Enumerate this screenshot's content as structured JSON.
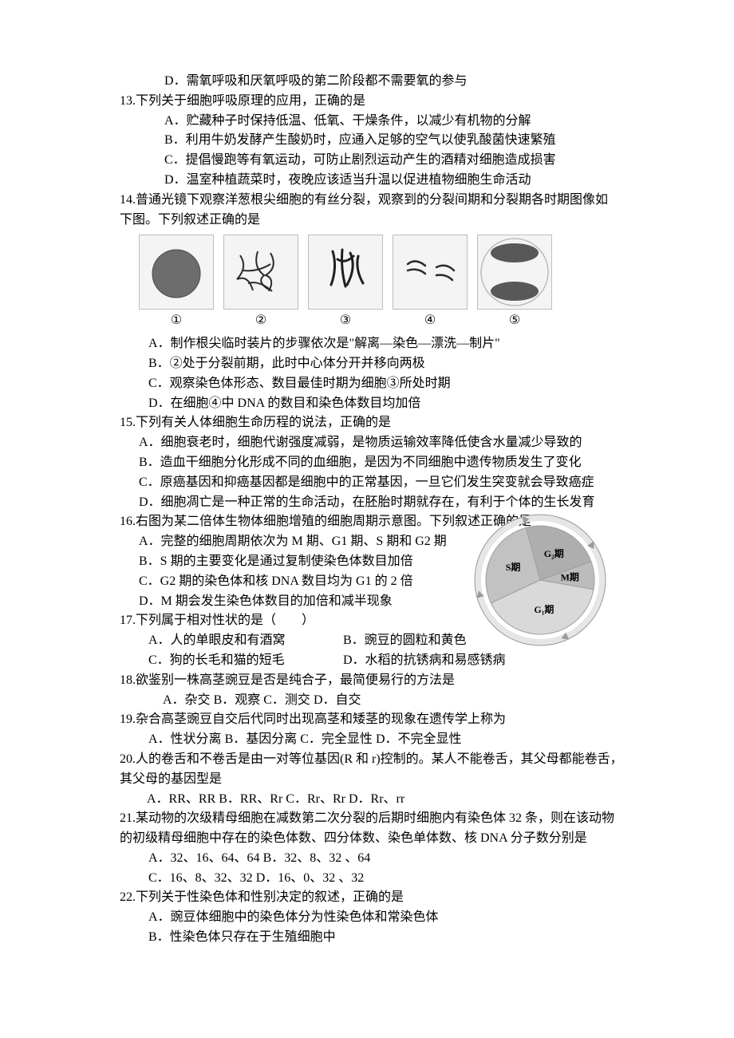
{
  "q12": {
    "D": "D．需氧呼吸和厌氧呼吸的第二阶段都不需要氧的参与"
  },
  "q13": {
    "stem": "13.下列关于细胞呼吸原理的应用，正确的是",
    "A": "A．贮藏种子时保持低温、低氧、干燥条件，以减少有机物的分解",
    "B": "B．利用牛奶发酵产生酸奶时，应通入足够的空气以使乳酸菌快速繁殖",
    "C": "C．提倡慢跑等有氧运动，可防止剧烈运动产生的酒精对细胞造成损害",
    "D": "D．温室种植蔬菜时，夜晚应该适当升温以促进植物细胞生命活动"
  },
  "q14": {
    "stem1": "14.普通光镜下观察洋葱根尖细胞的有丝分裂，观察到的分裂间期和分裂期各时期图像如",
    "stem2": "下图。下列叙述正确的是",
    "labels": [
      "①",
      "②",
      "③",
      "④",
      "⑤"
    ],
    "img_border": "#bdbdbd",
    "img_bg": "#f4f4f4",
    "A": "A．制作根尖临时装片的步骤依次是\"解离—染色—漂洗—制片\"",
    "B": "B．②处于分裂前期，此时中心体分开并移向两极",
    "C": "C．观察染色体形态、数目最佳时期为细胞③所处时期",
    "D": "D．在细胞④中 DNA 的数目和染色体数目均加倍"
  },
  "q15": {
    "stem": "15.下列有关人体细胞生命历程的说法，正确的是",
    "A": "A．细胞衰老时，细胞代谢强度减弱，是物质运输效率降低使含水量减少导致的",
    "B": "B．造血干细胞分化形成不同的血细胞，是因为不同细胞中遗传物质发生了变化",
    "C": "C．原癌基因和抑癌基因都是细胞中的正常基因，一旦它们发生突变就会导致癌症",
    "D": "D．细胞凋亡是一种正常的生命活动，在胚胎时期就存在，有利于个体的生长发育"
  },
  "q16": {
    "stem": "16.右图为某二倍体生物体细胞增殖的细胞周期示意图。下列叙述正确的是",
    "A": "A．完整的细胞周期依次为 M 期、G1 期、S 期和 G2 期",
    "B": "B．S 期的主要变化是通过复制使染色体数目加倍",
    "C": "C．G2 期的染色体和核 DNA 数目均为 G1 的 2 倍",
    "D": "D．M 期会发生染色体数目的加倍和减半现象",
    "chart": {
      "type": "pie",
      "bg": "#ffffff",
      "outer_stroke": "#9e9e9e",
      "sectors": [
        {
          "label": "M期",
          "start": 70,
          "end": 100,
          "fill": "#bcbcbc"
        },
        {
          "label": "G₁期",
          "start": 100,
          "end": 245,
          "fill": "#d9d9d9"
        },
        {
          "label": "S期",
          "start": 245,
          "end": 345,
          "fill": "#c2c2c2"
        },
        {
          "label": "G₂期",
          "start": 345,
          "end": 430,
          "fill": "#aeaeae"
        }
      ],
      "label_fontsize": 12,
      "label_color": "#000000",
      "arrow_ring_radius_out": 82,
      "arrow_ring_radius_in": 74,
      "arrow_fill": "#e6e6e6",
      "arrow_stroke": "#9a9a9a"
    }
  },
  "q17": {
    "stem": "17.下列属于相对性状的是（　　）",
    "A": "A．人的单眼皮和有酒窝",
    "B": "B．豌豆的圆粒和黄色",
    "C": "C．狗的长毛和猫的短毛",
    "D": "D．水稻的抗锈病和易感锈病"
  },
  "q18": {
    "stem": "18.欲鉴别一株高茎豌豆是否是纯合子，最简便易行的方法是",
    "A": "A．杂交",
    "B": "B．观察",
    "C": "C．测交",
    "D": "D．自交"
  },
  "q19": {
    "stem": "19.杂合高茎豌豆自交后代同时出现高茎和矮茎的现象在遗传学上称为",
    "A": "A．性状分离",
    "B": "B．基因分离",
    "C": "C．完全显性",
    "D": "D．不完全显性"
  },
  "q20": {
    "stem1": "20.人的卷舌和不卷舌是由一对等位基因(R 和 r)控制的。某人不能卷舌，其父母都能卷舌，",
    "stem2": "其父母的基因型是",
    "A": "A．RR、RR",
    "B": "B．RR、Rr",
    "C": "C．Rr、Rr",
    "D": "D．Rr、rr"
  },
  "q21": {
    "stem1": "21.某动物的次级精母细胞在减数第二次分裂的后期时细胞内有染色体 32 条，则在该动物",
    "stem2": "的初级精母细胞中存在的染色体数、四分体数、染色单体数、核 DNA 分子数分别是",
    "A": "A．32、16、64、64",
    "B": "B．32、8、32 、64",
    "C": "C．16、8、32、32",
    "D": "D．16、0、32 、32"
  },
  "q22": {
    "stem": "22.下列关于性染色体和性别决定的叙述，正确的是",
    "A": "A．豌豆体细胞中的染色体分为性染色体和常染色体",
    "B": "B．性染色体只存在于生殖细胞中"
  }
}
